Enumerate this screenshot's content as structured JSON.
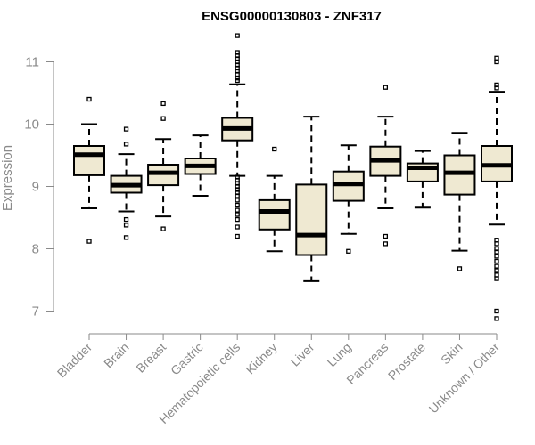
{
  "chart_data": {
    "type": "box",
    "title": "ENSG00000130803 - ZNF317",
    "xlabel": "",
    "ylabel": "Expression",
    "ylim": [
      6.75,
      11.45
    ],
    "yticks": [
      7,
      8,
      9,
      10,
      11
    ],
    "box_fill": "#efe9d2",
    "categories": [
      "Bladder",
      "Brain",
      "Breast",
      "Gastric",
      "Hematopoietic cells",
      "Kidney",
      "Liver",
      "Lung",
      "Pancreas",
      "Prostate",
      "Skin",
      "Unknown / Other"
    ],
    "boxes": [
      {
        "whisker_low": 8.65,
        "q1": 9.18,
        "median": 9.51,
        "q3": 9.65,
        "whisker_high": 10.0,
        "outliers": [
          10.4,
          8.12
        ]
      },
      {
        "whisker_low": 8.6,
        "q1": 8.9,
        "median": 9.02,
        "q3": 9.17,
        "whisker_high": 9.52,
        "outliers": [
          9.92,
          9.68,
          8.47,
          8.38,
          8.18
        ]
      },
      {
        "whisker_low": 8.52,
        "q1": 9.02,
        "median": 9.22,
        "q3": 9.35,
        "whisker_high": 9.76,
        "outliers": [
          10.33,
          10.09,
          8.32
        ]
      },
      {
        "whisker_low": 8.85,
        "q1": 9.2,
        "median": 9.33,
        "q3": 9.45,
        "whisker_high": 9.82,
        "outliers": []
      },
      {
        "whisker_low": 9.17,
        "q1": 9.74,
        "median": 9.93,
        "q3": 10.1,
        "whisker_high": 10.64,
        "outliers": [
          11.42,
          11.15,
          11.1,
          11.05,
          11.0,
          10.95,
          10.9,
          10.85,
          10.8,
          10.74,
          10.7,
          9.15,
          9.1,
          9.05,
          9.0,
          8.95,
          8.9,
          8.85,
          8.78,
          8.7,
          8.62,
          8.55,
          8.47,
          8.35,
          8.2
        ]
      },
      {
        "whisker_low": 7.96,
        "q1": 8.31,
        "median": 8.6,
        "q3": 8.78,
        "whisker_high": 9.17,
        "outliers": [
          9.6
        ]
      },
      {
        "whisker_low": 7.48,
        "q1": 7.9,
        "median": 8.22,
        "q3": 9.03,
        "whisker_high": 10.12,
        "outliers": []
      },
      {
        "whisker_low": 8.24,
        "q1": 8.77,
        "median": 9.04,
        "q3": 9.24,
        "whisker_high": 9.66,
        "outliers": [
          7.96
        ]
      },
      {
        "whisker_low": 8.65,
        "q1": 9.17,
        "median": 9.42,
        "q3": 9.64,
        "whisker_high": 10.12,
        "outliers": [
          10.59,
          8.2,
          8.08
        ]
      },
      {
        "whisker_low": 8.66,
        "q1": 9.08,
        "median": 9.3,
        "q3": 9.37,
        "whisker_high": 9.57,
        "outliers": []
      },
      {
        "whisker_low": 7.97,
        "q1": 8.87,
        "median": 9.22,
        "q3": 9.5,
        "whisker_high": 9.86,
        "outliers": [
          7.68
        ]
      },
      {
        "whisker_low": 8.39,
        "q1": 9.08,
        "median": 9.34,
        "q3": 9.65,
        "whisker_high": 10.52,
        "outliers": [
          11.06,
          11.0,
          10.63,
          10.58,
          8.14,
          8.08,
          8.0,
          7.95,
          7.88,
          7.8,
          7.72,
          7.65,
          7.58,
          7.52,
          7.0,
          6.88
        ]
      }
    ]
  }
}
